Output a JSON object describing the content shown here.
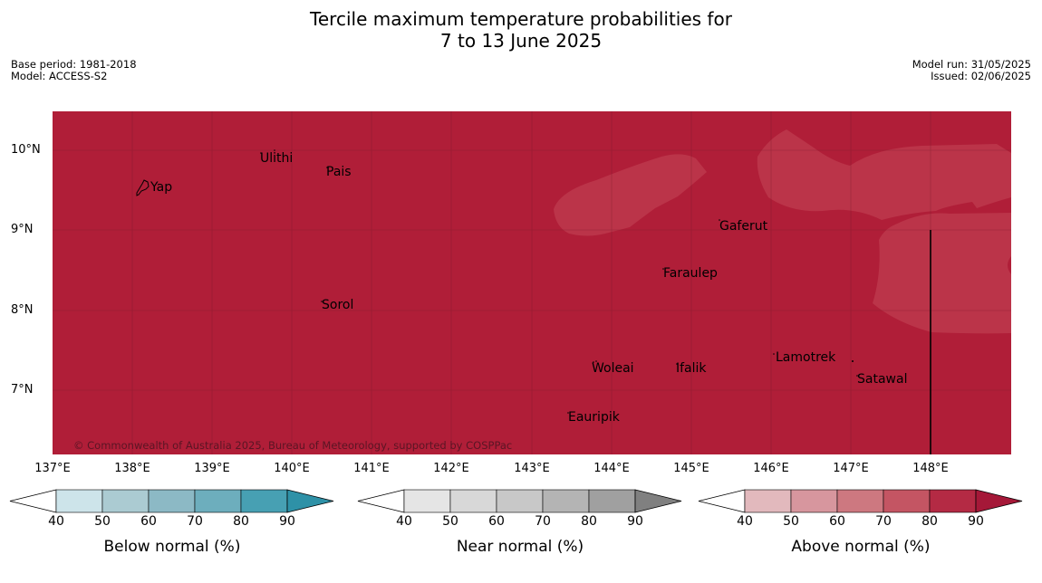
{
  "title": {
    "line1": "Tercile maximum temperature probabilities for",
    "line2": "7 to 13 June 2025"
  },
  "meta": {
    "base_period": "Base period: 1981-2018",
    "model": "Model: ACCESS-S2",
    "model_run": "Model run: 31/05/2025",
    "issued": "Issued: 02/06/2025"
  },
  "axes": {
    "lat_labels": [
      "10°N",
      "9°N",
      "8°N",
      "7°N"
    ],
    "lon_labels": [
      "137°E",
      "138°E",
      "139°E",
      "140°E",
      "141°E",
      "142°E",
      "143°E",
      "144°E",
      "145°E",
      "146°E",
      "147°E",
      "148°E"
    ]
  },
  "places": {
    "yap": "Yap",
    "ulithi": "Ulithi",
    "pais": "Pais",
    "gaferut": "Gaferut",
    "faraulep": "Faraulep",
    "sorol": "Sorol",
    "lamotrek": "Lamotrek",
    "woleai": "Woleai",
    "ifalik": "Ifalik",
    "satawal": "Satawal",
    "eauripik": "Eauripik"
  },
  "copyright": "© Commonwealth of Australia 2025, Bureau of Meteorology, supported by COSPPac",
  "colors": {
    "above_90": "#b01e38",
    "above_80": "#bb3449",
    "below": [
      "#cde4ea",
      "#abcbd2",
      "#8cb9c5",
      "#6daebd",
      "#47a0b3",
      "#2e91a7"
    ],
    "near": [
      "#e5e5e5",
      "#d8d8d8",
      "#c8c8c8",
      "#b4b4b4",
      "#a0a0a0",
      "#808080"
    ],
    "above": [
      "#e2b9bd",
      "#d7969e",
      "#cd7880",
      "#c45563",
      "#b42a44",
      "#a51838"
    ]
  },
  "colorbars": {
    "ticks": [
      "40",
      "50",
      "60",
      "70",
      "80",
      "90"
    ],
    "below_label": "Below normal (%)",
    "near_label": "Near normal (%)",
    "above_label": "Above normal (%)"
  }
}
